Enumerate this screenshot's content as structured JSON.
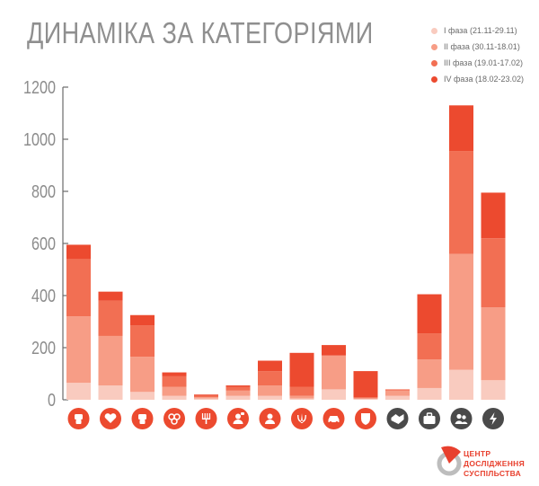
{
  "title": "ДИНАМІКА ЗА КАТЕГОРІЯМИ",
  "legend": [
    {
      "label": "І фаза (21.11-29.11)",
      "color": "#f9cbbf"
    },
    {
      "label": "ІІ фаза (30.11-18.01)",
      "color": "#f79d86"
    },
    {
      "label": "ІІІ фаза (19.01-17.02)",
      "color": "#f26f53"
    },
    {
      "label": "ІV фаза (18.02-23.02)",
      "color": "#ec4a2f"
    }
  ],
  "logo": {
    "line1": "ЦЕНТР",
    "line2": "ДОСЛІДЖЕННЯ",
    "line3": "СУСПІЛЬСТВА"
  },
  "chart_data": {
    "type": "bar",
    "stacked": true,
    "title": "ДИНАМІКА ЗА КАТЕГОРІЯМИ",
    "xlabel": "",
    "ylabel": "",
    "ylim": [
      0,
      1200
    ],
    "yticks": [
      0,
      200,
      400,
      600,
      800,
      1000,
      1200
    ],
    "categories": [
      "labor-fist-icon",
      "heart-icon",
      "raised-fist-icon",
      "circles-icon",
      "fork-icon",
      "person-speech-icon",
      "person-icon",
      "trident-icon",
      "car-icon",
      "shield-icon",
      "handshake-icon",
      "briefcase-icon",
      "people-icon",
      "lightning-icon"
    ],
    "category_colors": [
      "#ec4a2f",
      "#ec4a2f",
      "#ec4a2f",
      "#ec4a2f",
      "#ec4a2f",
      "#ec4a2f",
      "#ec4a2f",
      "#ec4a2f",
      "#ec4a2f",
      "#ec4a2f",
      "#4a4a4a",
      "#4a4a4a",
      "#4a4a4a",
      "#4a4a4a"
    ],
    "series": [
      {
        "name": "І фаза (21.11-29.11)",
        "color": "#f9cbbf",
        "values": [
          65,
          55,
          30,
          15,
          5,
          15,
          15,
          5,
          40,
          5,
          15,
          45,
          115,
          75
        ]
      },
      {
        "name": "ІІ фаза (30.11-18.01)",
        "color": "#f79d86",
        "values": [
          255,
          190,
          135,
          35,
          5,
          20,
          40,
          10,
          130,
          0,
          20,
          110,
          445,
          280
        ]
      },
      {
        "name": "ІІІ фаза (19.01-17.02)",
        "color": "#f26f53",
        "values": [
          220,
          135,
          120,
          40,
          5,
          15,
          55,
          35,
          0,
          5,
          5,
          100,
          395,
          265
        ]
      },
      {
        "name": "ІV фаза (18.02-23.02)",
        "color": "#ec4a2f",
        "values": [
          55,
          35,
          40,
          15,
          5,
          5,
          40,
          130,
          40,
          100,
          0,
          150,
          175,
          175
        ]
      }
    ]
  }
}
